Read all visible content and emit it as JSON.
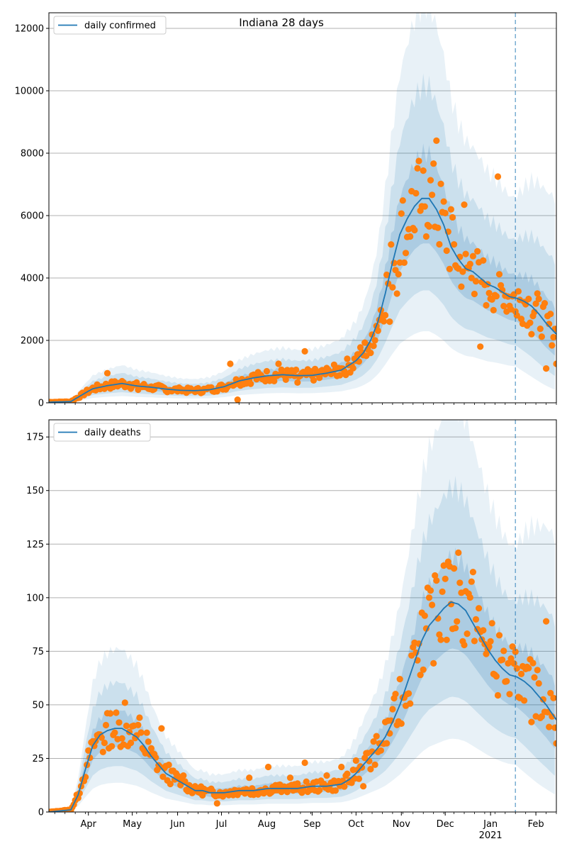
{
  "figure": {
    "title": "Indiana 28 days"
  },
  "chart_data": [
    {
      "type": "line",
      "legend": "top-left",
      "grid": "horizontal",
      "ylim": [
        0,
        12500
      ],
      "yticks": [
        0,
        2000,
        4000,
        6000,
        8000,
        10000,
        12000
      ],
      "ytick_labels": [
        "0",
        "2000",
        "4000",
        "6000",
        "8000",
        "10000",
        "12000"
      ],
      "xlim_days": [
        0,
        347
      ],
      "forecast_start_day": 319,
      "series": [
        {
          "name": "daily confirmed",
          "color": "#1f77b4",
          "x_days": [
            0,
            15,
            20,
            25,
            30,
            40,
            50,
            60,
            70,
            80,
            90,
            100,
            110,
            120,
            130,
            140,
            150,
            160,
            170,
            180,
            190,
            200,
            210,
            215,
            220,
            225,
            230,
            235,
            240,
            245,
            250,
            255,
            260,
            265,
            270,
            275,
            280,
            285,
            290,
            295,
            300,
            305,
            310,
            315,
            320,
            325,
            330,
            335,
            340,
            347
          ],
          "values": [
            20,
            40,
            180,
            320,
            450,
            550,
            620,
            540,
            500,
            440,
            400,
            390,
            420,
            520,
            700,
            800,
            870,
            900,
            870,
            880,
            950,
            1050,
            1350,
            1600,
            2000,
            2600,
            3500,
            4500,
            5400,
            5900,
            6300,
            6550,
            6550,
            6200,
            5700,
            5000,
            4600,
            4300,
            4200,
            4000,
            3800,
            3700,
            3550,
            3400,
            3350,
            3250,
            3100,
            2850,
            2550,
            2200
          ]
        },
        {
          "name": "observed",
          "color": "#ff7f0e",
          "x_days": [
            14,
            25,
            40,
            55,
            61,
            70,
            80,
            90,
            100,
            110,
            124,
            129,
            140,
            150,
            157,
            170,
            175,
            185,
            192,
            200,
            210,
            220,
            228,
            233,
            238,
            244,
            249,
            255,
            260,
            265,
            270,
            275,
            280,
            284,
            290,
            295,
            300,
            307,
            311,
            320,
            330,
            340,
            347
          ],
          "values": [
            30,
            320,
            950,
            600,
            420,
            520,
            380,
            450,
            350,
            480,
            1250,
            100,
            900,
            750,
            1250,
            650,
            1650,
            800,
            1000,
            1100,
            1350,
            1600,
            2800,
            2600,
            3500,
            4800,
            5600,
            6300,
            5650,
            8400,
            6450,
            6200,
            4300,
            6350,
            4700,
            1800,
            3800,
            7250,
            3100,
            2800,
            2200,
            1100,
            1250
          ]
        }
      ]
    },
    {
      "type": "line",
      "legend": "top-left",
      "grid": "horizontal",
      "ylim": [
        0,
        183
      ],
      "yticks": [
        0,
        25,
        50,
        75,
        100,
        125,
        150,
        175
      ],
      "ytick_labels": [
        "0",
        "25",
        "50",
        "75",
        "100",
        "125",
        "150",
        "175"
      ],
      "xlim_days": [
        0,
        347
      ],
      "forecast_start_day": 319,
      "xtick_labels": [
        {
          "label": "Apr",
          "day": 27
        },
        {
          "label": "May",
          "day": 57
        },
        {
          "label": "Jun",
          "day": 88
        },
        {
          "label": "Jul",
          "day": 118
        },
        {
          "label": "Aug",
          "day": 149
        },
        {
          "label": "Sep",
          "day": 180
        },
        {
          "label": "Oct",
          "day": 210
        },
        {
          "label": "Nov",
          "day": 241
        },
        {
          "label": "Dec",
          "day": 271
        },
        {
          "label": "Jan",
          "day": 302
        },
        {
          "label": "Feb",
          "day": 333
        }
      ],
      "year_label": {
        "label": "2021",
        "day": 302
      },
      "series": [
        {
          "name": "daily deaths",
          "color": "#1f77b4",
          "x_days": [
            0,
            15,
            20,
            25,
            30,
            35,
            40,
            45,
            50,
            55,
            60,
            65,
            70,
            75,
            80,
            85,
            90,
            95,
            100,
            105,
            110,
            120,
            130,
            140,
            150,
            160,
            170,
            180,
            190,
            200,
            205,
            210,
            215,
            220,
            225,
            230,
            235,
            240,
            245,
            250,
            255,
            260,
            265,
            270,
            275,
            280,
            285,
            290,
            295,
            300,
            305,
            310,
            315,
            320,
            325,
            330,
            335,
            340,
            347
          ],
          "values": [
            0,
            1,
            8,
            20,
            31,
            36,
            38,
            39,
            39,
            37,
            35,
            31,
            26,
            22,
            18,
            16,
            14,
            12,
            10,
            10,
            9,
            9,
            10,
            10,
            11,
            11,
            11,
            12,
            12,
            13,
            15,
            18,
            22,
            26,
            30,
            35,
            42,
            50,
            60,
            70,
            80,
            87,
            91,
            95,
            98,
            97,
            94,
            88,
            82,
            76,
            71,
            67,
            64,
            63,
            61,
            58,
            54,
            50,
            43
          ]
        },
        {
          "name": "observed",
          "color": "#ff7f0e",
          "x_days": [
            14,
            22,
            26,
            30,
            37,
            42,
            47,
            52,
            57,
            62,
            67,
            72,
            77,
            82,
            87,
            92,
            100,
            108,
            115,
            120,
            130,
            137,
            140,
            150,
            160,
            165,
            175,
            180,
            190,
            200,
            205,
            210,
            215,
            220,
            225,
            230,
            235,
            240,
            245,
            250,
            255,
            260,
            265,
            270,
            275,
            280,
            285,
            290,
            295,
            300,
            305,
            310,
            315,
            320,
            325,
            330,
            335,
            340,
            347
          ],
          "values": [
            1,
            12,
            22,
            33,
            28,
            46,
            34,
            51,
            40,
            44,
            37,
            27,
            39,
            22,
            18,
            17,
            12,
            10,
            4,
            9,
            10,
            16,
            8,
            21,
            11,
            16,
            23,
            12,
            17,
            21,
            14,
            24,
            12,
            20,
            28,
            42,
            48,
            62,
            55,
            79,
            93,
            100,
            108,
            115,
            97,
            121,
            103,
            112,
            84,
            76,
            64,
            71,
            55,
            67,
            52,
            42,
            60,
            89,
            32
          ]
        }
      ]
    }
  ]
}
